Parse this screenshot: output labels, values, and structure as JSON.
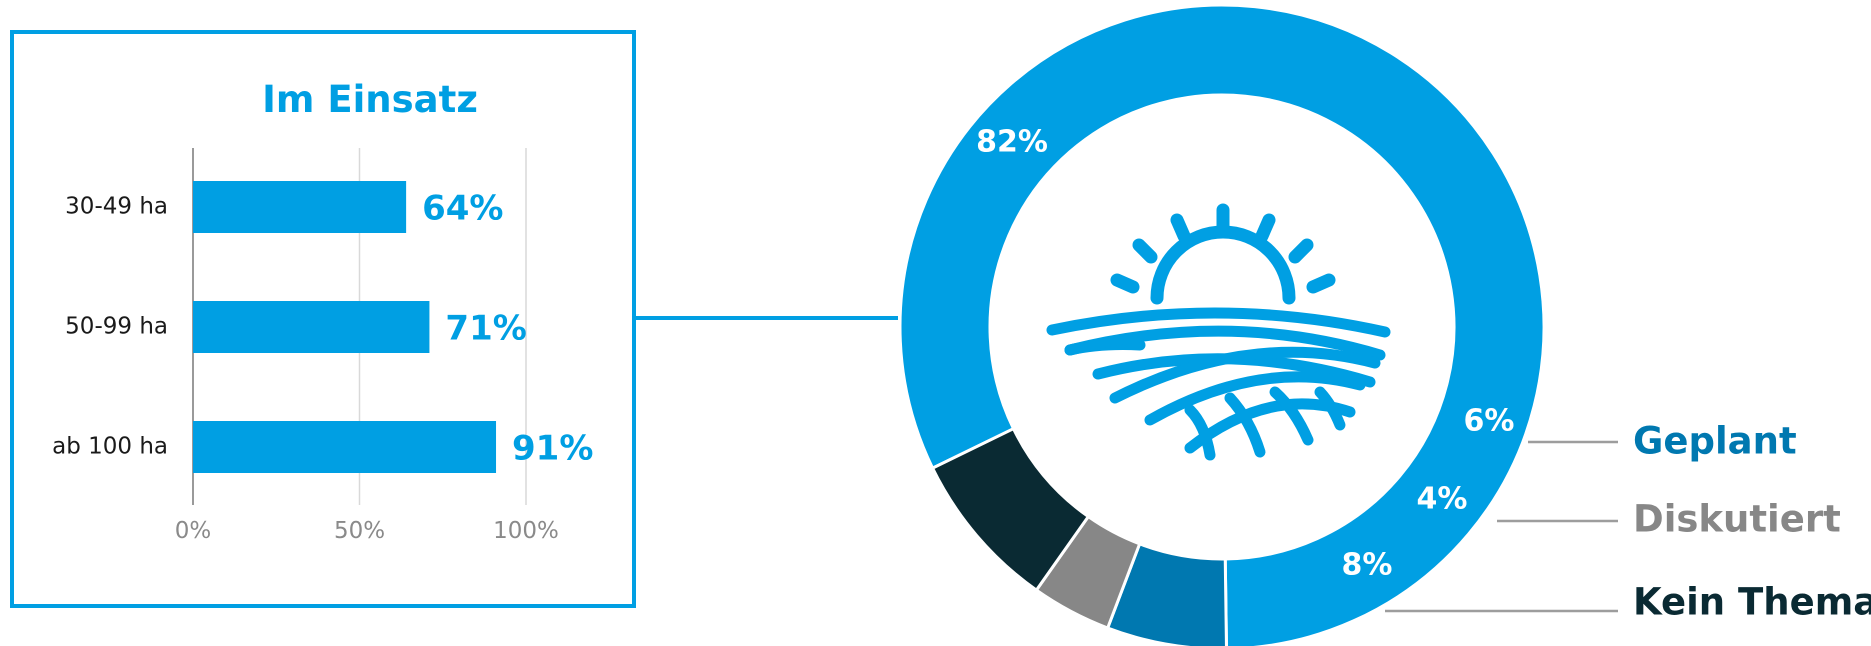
{
  "colors": {
    "primary": "#009fe3",
    "geplant": "#0078b0",
    "diskutiert": "#878787",
    "kein_thema": "#0a2a33",
    "connector": "#9d9d9d",
    "box_border": "#009fe3"
  },
  "chart_data": [
    {
      "type": "bar",
      "orientation": "horizontal",
      "title": "Im Einsatz",
      "categories": [
        "30-49 ha",
        "50-99 ha",
        "ab 100 ha"
      ],
      "values": [
        64,
        71,
        91
      ],
      "value_labels": [
        "64%",
        "71%",
        "91%"
      ],
      "xlim": [
        0,
        100
      ],
      "xticks": [
        0,
        50,
        100
      ],
      "xtick_labels": [
        "0%",
        "50%",
        "100%"
      ],
      "grid": true
    },
    {
      "type": "pie",
      "variant": "donut",
      "center_icon": "sun-over-field-icon",
      "slices": [
        {
          "label": "",
          "value": 82,
          "value_label": "82%",
          "color": "#009fe3"
        },
        {
          "label": "Geplant",
          "value": 6,
          "value_label": "6%",
          "color": "#0078b0"
        },
        {
          "label": "Diskutiert",
          "value": 4,
          "value_label": "4%",
          "color": "#878787"
        },
        {
          "label": "Kein Thema",
          "value": 8,
          "value_label": "8%",
          "color": "#0a2a33"
        }
      ]
    }
  ]
}
